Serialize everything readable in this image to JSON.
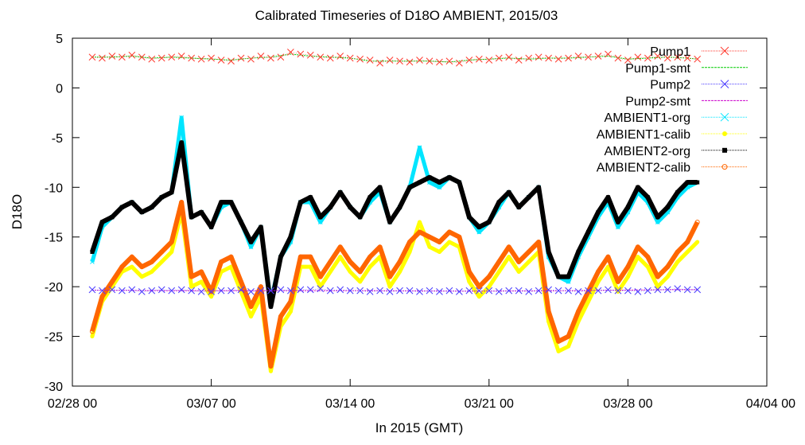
{
  "chart_data": {
    "type": "scatter",
    "title": "Calibrated Timeseries of D18O AMBIENT, 2015/03",
    "xlabel": "In 2015 (GMT)",
    "ylabel": "D18O",
    "xlim": [
      "2015-02-28 00:00",
      "2015-04-04 00:00"
    ],
    "ylim": [
      -30,
      5
    ],
    "xticks": [
      "02/28 00",
      "03/07 00",
      "03/14 00",
      "03/21 00",
      "03/28 00",
      "04/04 00"
    ],
    "yticks": [
      "5",
      "0",
      "-5",
      "-10",
      "-15",
      "-20",
      "-25",
      "-30"
    ],
    "legend_position": "top-right",
    "grid": false,
    "series": [
      {
        "name": "Pump1",
        "color": "#ff3b2f",
        "marker": "x",
        "x": [
          "03/01 00",
          "03/01 12",
          "03/02 00",
          "03/02 12",
          "03/03 00",
          "03/03 12",
          "03/04 00",
          "03/04 12",
          "03/05 00",
          "03/05 12",
          "03/06 00",
          "03/06 12",
          "03/07 00",
          "03/07 12",
          "03/08 00",
          "03/08 12",
          "03/09 00",
          "03/09 12",
          "03/10 00",
          "03/10 12",
          "03/11 00",
          "03/11 12",
          "03/12 00",
          "03/12 12",
          "03/13 00",
          "03/13 12",
          "03/14 00",
          "03/14 12",
          "03/15 00",
          "03/15 12",
          "03/16 00",
          "03/16 12",
          "03/17 00",
          "03/17 12",
          "03/18 00",
          "03/18 12",
          "03/19 00",
          "03/19 12",
          "03/20 00",
          "03/20 12",
          "03/21 00",
          "03/21 12",
          "03/22 00",
          "03/22 12",
          "03/23 00",
          "03/23 12",
          "03/24 00",
          "03/24 12",
          "03/25 00",
          "03/25 12",
          "03/26 00",
          "03/26 12",
          "03/27 00",
          "03/27 12",
          "03/28 00",
          "03/28 12",
          "03/29 00",
          "03/29 12",
          "03/30 00",
          "03/30 12",
          "03/31 00",
          "03/31 12"
        ],
        "y": [
          3.1,
          3.0,
          3.2,
          3.1,
          3.3,
          3.1,
          2.9,
          3.0,
          3.1,
          3.2,
          3.0,
          2.9,
          3.0,
          2.8,
          2.7,
          3.0,
          2.9,
          3.2,
          3.0,
          3.1,
          3.6,
          3.4,
          3.3,
          3.1,
          3.0,
          3.2,
          3.0,
          2.9,
          2.8,
          2.5,
          2.8,
          2.7,
          2.6,
          2.8,
          2.7,
          2.6,
          2.7,
          2.5,
          2.8,
          2.9,
          2.8,
          3.0,
          3.1,
          2.8,
          3.0,
          3.1,
          3.0,
          2.9,
          3.0,
          3.2,
          3.1,
          3.2,
          3.4,
          3.0,
          2.8,
          3.1,
          3.0,
          3.2,
          3.0,
          3.1,
          3.0,
          2.9
        ]
      },
      {
        "name": "Pump1-smt",
        "color": "#00cc00",
        "marker": "line",
        "x": [
          "03/01 00",
          "03/02 00",
          "03/03 00",
          "03/04 00",
          "03/05 00",
          "03/06 00",
          "03/07 00",
          "03/08 00",
          "03/09 00",
          "03/10 00",
          "03/11 00",
          "03/12 00",
          "03/13 00",
          "03/14 00",
          "03/15 00",
          "03/16 00",
          "03/17 00",
          "03/18 00",
          "03/19 00",
          "03/20 00",
          "03/21 00",
          "03/22 00",
          "03/23 00",
          "03/24 00",
          "03/25 00",
          "03/26 00",
          "03/27 00",
          "03/28 00",
          "03/29 00",
          "03/30 00",
          "03/31 00",
          "03/31 12"
        ],
        "y": [
          3.1,
          3.1,
          3.2,
          3.0,
          3.1,
          3.0,
          2.9,
          2.8,
          3.0,
          3.1,
          3.4,
          3.2,
          3.1,
          3.0,
          2.7,
          2.7,
          2.7,
          2.7,
          2.6,
          2.8,
          2.9,
          3.0,
          2.9,
          3.0,
          3.0,
          3.1,
          3.2,
          2.9,
          3.0,
          3.1,
          3.0,
          2.9
        ]
      },
      {
        "name": "Pump2",
        "color": "#4a3bff",
        "marker": "x",
        "x": [
          "03/01 00",
          "03/01 12",
          "03/02 00",
          "03/02 12",
          "03/03 00",
          "03/03 12",
          "03/04 00",
          "03/04 12",
          "03/05 00",
          "03/05 12",
          "03/06 00",
          "03/06 12",
          "03/07 00",
          "03/07 12",
          "03/08 00",
          "03/08 12",
          "03/09 00",
          "03/09 12",
          "03/10 00",
          "03/10 12",
          "03/11 00",
          "03/11 12",
          "03/12 00",
          "03/12 12",
          "03/13 00",
          "03/13 12",
          "03/14 00",
          "03/14 12",
          "03/15 00",
          "03/15 12",
          "03/16 00",
          "03/16 12",
          "03/17 00",
          "03/17 12",
          "03/18 00",
          "03/18 12",
          "03/19 00",
          "03/19 12",
          "03/20 00",
          "03/20 12",
          "03/21 00",
          "03/21 12",
          "03/22 00",
          "03/22 12",
          "03/23 00",
          "03/23 12",
          "03/24 00",
          "03/24 12",
          "03/25 00",
          "03/25 12",
          "03/26 00",
          "03/26 12",
          "03/27 00",
          "03/27 12",
          "03/28 00",
          "03/28 12",
          "03/29 00",
          "03/29 12",
          "03/30 00",
          "03/30 12",
          "03/31 00",
          "03/31 12"
        ],
        "y": [
          -20.3,
          -20.4,
          -20.3,
          -20.4,
          -20.3,
          -20.5,
          -20.4,
          -20.3,
          -20.4,
          -20.3,
          -20.4,
          -20.5,
          -20.5,
          -20.4,
          -20.4,
          -20.3,
          -20.5,
          -20.4,
          -20.4,
          -20.3,
          -20.4,
          -20.3,
          -20.3,
          -20.2,
          -20.4,
          -20.3,
          -20.4,
          -20.4,
          -20.5,
          -20.4,
          -20.5,
          -20.4,
          -20.4,
          -20.5,
          -20.4,
          -20.5,
          -20.4,
          -20.5,
          -20.4,
          -20.4,
          -20.4,
          -20.5,
          -20.4,
          -20.4,
          -20.5,
          -20.4,
          -20.3,
          -20.4,
          -20.4,
          -20.5,
          -20.4,
          -20.4,
          -20.3,
          -20.4,
          -20.4,
          -20.5,
          -20.4,
          -20.3,
          -20.3,
          -20.2,
          -20.3,
          -20.3
        ]
      },
      {
        "name": "Pump2-smt",
        "color": "#cc00cc",
        "marker": "line",
        "x": [
          "03/01 00",
          "03/05 00",
          "03/10 00",
          "03/15 00",
          "03/20 00",
          "03/25 00",
          "03/30 00",
          "03/31 12"
        ],
        "y": [
          -20.35,
          -20.4,
          -20.4,
          -20.4,
          -20.45,
          -20.4,
          -20.3,
          -20.3
        ]
      },
      {
        "name": "AMBIENT1-org",
        "color": "#00e5ff",
        "marker": "x",
        "x": [
          "03/01 00",
          "03/01 12",
          "03/02 00",
          "03/02 12",
          "03/03 00",
          "03/03 12",
          "03/04 00",
          "03/04 12",
          "03/05 00",
          "03/05 12",
          "03/06 00",
          "03/06 12",
          "03/07 00",
          "03/07 12",
          "03/08 00",
          "03/08 12",
          "03/09 00",
          "03/09 12",
          "03/10 00",
          "03/10 12",
          "03/11 00",
          "03/11 12",
          "03/12 00",
          "03/12 12",
          "03/13 00",
          "03/13 12",
          "03/14 00",
          "03/14 12",
          "03/15 00",
          "03/15 12",
          "03/16 00",
          "03/16 12",
          "03/17 00",
          "03/17 12",
          "03/18 00",
          "03/18 12",
          "03/19 00",
          "03/19 12",
          "03/20 00",
          "03/20 12",
          "03/21 00",
          "03/21 12",
          "03/22 00",
          "03/22 12",
          "03/23 00",
          "03/23 12",
          "03/24 00",
          "03/24 12",
          "03/25 00",
          "03/25 12",
          "03/26 00",
          "03/26 12",
          "03/27 00",
          "03/27 12",
          "03/28 00",
          "03/28 12",
          "03/29 00",
          "03/29 12",
          "03/30 00",
          "03/30 12",
          "03/31 00",
          "03/31 12"
        ],
        "y": [
          -17.5,
          -14.0,
          -13.0,
          -12.0,
          -11.5,
          -12.5,
          -12.0,
          -11.0,
          -10.5,
          -3.0,
          -13.0,
          -12.5,
          -14.0,
          -12.0,
          -11.5,
          -13.5,
          -16.0,
          -14.0,
          -21.5,
          -17.0,
          -15.5,
          -11.5,
          -11.5,
          -13.5,
          -12.0,
          -10.5,
          -12.0,
          -13.0,
          -11.5,
          -10.5,
          -13.5,
          -12.0,
          -10.0,
          -6.0,
          -9.5,
          -10.0,
          -9.0,
          -9.5,
          -13.0,
          -14.5,
          -13.5,
          -12.0,
          -10.5,
          -12.0,
          -11.0,
          -10.0,
          -17.0,
          -19.0,
          -19.5,
          -17.0,
          -15.0,
          -13.0,
          -11.5,
          -14.0,
          -12.5,
          -10.5,
          -11.5,
          -13.5,
          -12.5,
          -11.0,
          -10.0,
          -9.5
        ]
      },
      {
        "name": "AMBIENT1-calib",
        "color": "#ffff00",
        "marker": "dot",
        "x": [
          "03/01 00",
          "03/01 12",
          "03/02 00",
          "03/02 12",
          "03/03 00",
          "03/03 12",
          "03/04 00",
          "03/04 12",
          "03/05 00",
          "03/05 12",
          "03/06 00",
          "03/06 12",
          "03/07 00",
          "03/07 12",
          "03/08 00",
          "03/08 12",
          "03/09 00",
          "03/09 12",
          "03/10 00",
          "03/10 12",
          "03/11 00",
          "03/11 12",
          "03/12 00",
          "03/12 12",
          "03/13 00",
          "03/13 12",
          "03/14 00",
          "03/14 12",
          "03/15 00",
          "03/15 12",
          "03/16 00",
          "03/16 12",
          "03/17 00",
          "03/17 12",
          "03/18 00",
          "03/18 12",
          "03/19 00",
          "03/19 12",
          "03/20 00",
          "03/20 12",
          "03/21 00",
          "03/21 12",
          "03/22 00",
          "03/22 12",
          "03/23 00",
          "03/23 12",
          "03/24 00",
          "03/24 12",
          "03/25 00",
          "03/25 12",
          "03/26 00",
          "03/26 12",
          "03/27 00",
          "03/27 12",
          "03/28 00",
          "03/28 12",
          "03/29 00",
          "03/29 12",
          "03/30 00",
          "03/30 12",
          "03/31 00",
          "03/31 12"
        ],
        "y": [
          -25.0,
          -21.5,
          -20.0,
          -18.5,
          -18.0,
          -19.0,
          -18.5,
          -17.5,
          -16.5,
          -12.5,
          -20.0,
          -19.5,
          -21.0,
          -18.5,
          -18.0,
          -20.5,
          -23.0,
          -21.0,
          -28.5,
          -24.0,
          -22.5,
          -18.0,
          -18.0,
          -20.0,
          -18.5,
          -17.0,
          -18.5,
          -19.5,
          -18.0,
          -17.0,
          -20.0,
          -18.5,
          -16.5,
          -13.5,
          -16.0,
          -16.5,
          -15.5,
          -16.0,
          -19.5,
          -21.0,
          -20.0,
          -18.5,
          -17.0,
          -18.5,
          -17.5,
          -16.5,
          -23.5,
          -26.5,
          -26.0,
          -23.5,
          -21.5,
          -19.5,
          -18.0,
          -20.5,
          -19.0,
          -17.0,
          -18.0,
          -20.0,
          -19.0,
          -17.5,
          -16.5,
          -15.5
        ]
      },
      {
        "name": "AMBIENT2-org",
        "color": "#000000",
        "marker": "square",
        "x": [
          "03/01 00",
          "03/01 12",
          "03/02 00",
          "03/02 12",
          "03/03 00",
          "03/03 12",
          "03/04 00",
          "03/04 12",
          "03/05 00",
          "03/05 12",
          "03/06 00",
          "03/06 12",
          "03/07 00",
          "03/07 12",
          "03/08 00",
          "03/08 12",
          "03/09 00",
          "03/09 12",
          "03/10 00",
          "03/10 12",
          "03/11 00",
          "03/11 12",
          "03/12 00",
          "03/12 12",
          "03/13 00",
          "03/13 12",
          "03/14 00",
          "03/14 12",
          "03/15 00",
          "03/15 12",
          "03/16 00",
          "03/16 12",
          "03/17 00",
          "03/17 12",
          "03/18 00",
          "03/18 12",
          "03/19 00",
          "03/19 12",
          "03/20 00",
          "03/20 12",
          "03/21 00",
          "03/21 12",
          "03/22 00",
          "03/22 12",
          "03/23 00",
          "03/23 12",
          "03/24 00",
          "03/24 12",
          "03/25 00",
          "03/25 12",
          "03/26 00",
          "03/26 12",
          "03/27 00",
          "03/27 12",
          "03/28 00",
          "03/28 12",
          "03/29 00",
          "03/29 12",
          "03/30 00",
          "03/30 12",
          "03/31 00",
          "03/31 12"
        ],
        "y": [
          -16.5,
          -13.5,
          -13.0,
          -12.0,
          -11.5,
          -12.5,
          -12.0,
          -11.0,
          -10.5,
          -5.5,
          -13.0,
          -12.5,
          -14.0,
          -11.5,
          -11.5,
          -13.5,
          -15.5,
          -14.0,
          -22.0,
          -17.0,
          -15.0,
          -11.5,
          -11.0,
          -13.0,
          -12.0,
          -10.5,
          -12.0,
          -13.0,
          -11.0,
          -10.0,
          -13.5,
          -12.0,
          -10.0,
          -9.5,
          -9.0,
          -9.5,
          -9.0,
          -9.5,
          -13.0,
          -14.0,
          -13.5,
          -11.5,
          -10.5,
          -12.0,
          -11.0,
          -10.0,
          -16.5,
          -19.0,
          -19.0,
          -16.5,
          -14.5,
          -12.5,
          -11.0,
          -13.5,
          -12.0,
          -10.0,
          -11.0,
          -13.0,
          -12.0,
          -10.5,
          -9.5,
          -9.5
        ]
      },
      {
        "name": "AMBIENT2-calib",
        "color": "#ff6600",
        "marker": "circle",
        "x": [
          "03/01 00",
          "03/01 12",
          "03/02 00",
          "03/02 12",
          "03/03 00",
          "03/03 12",
          "03/04 00",
          "03/04 12",
          "03/05 00",
          "03/05 12",
          "03/06 00",
          "03/06 12",
          "03/07 00",
          "03/07 12",
          "03/08 00",
          "03/08 12",
          "03/09 00",
          "03/09 12",
          "03/10 00",
          "03/10 12",
          "03/11 00",
          "03/11 12",
          "03/12 00",
          "03/12 12",
          "03/13 00",
          "03/13 12",
          "03/14 00",
          "03/14 12",
          "03/15 00",
          "03/15 12",
          "03/16 00",
          "03/16 12",
          "03/17 00",
          "03/17 12",
          "03/18 00",
          "03/18 12",
          "03/19 00",
          "03/19 12",
          "03/20 00",
          "03/20 12",
          "03/21 00",
          "03/21 12",
          "03/22 00",
          "03/22 12",
          "03/23 00",
          "03/23 12",
          "03/24 00",
          "03/24 12",
          "03/25 00",
          "03/25 12",
          "03/26 00",
          "03/26 12",
          "03/27 00",
          "03/27 12",
          "03/28 00",
          "03/28 12",
          "03/29 00",
          "03/29 12",
          "03/30 00",
          "03/30 12",
          "03/31 00",
          "03/31 12"
        ],
        "y": [
          -24.5,
          -21.0,
          -19.5,
          -18.0,
          -17.0,
          -18.0,
          -17.5,
          -16.5,
          -15.5,
          -11.5,
          -19.0,
          -18.5,
          -20.5,
          -17.5,
          -17.0,
          -19.5,
          -22.0,
          -20.0,
          -28.0,
          -23.0,
          -21.5,
          -17.0,
          -17.0,
          -19.0,
          -17.5,
          -16.0,
          -17.5,
          -18.5,
          -17.0,
          -16.0,
          -19.0,
          -17.5,
          -15.5,
          -14.5,
          -15.0,
          -15.5,
          -14.5,
          -15.0,
          -18.5,
          -20.0,
          -19.0,
          -17.5,
          -16.0,
          -17.5,
          -16.5,
          -15.5,
          -22.5,
          -25.5,
          -25.0,
          -22.5,
          -20.5,
          -18.5,
          -17.0,
          -19.5,
          -18.0,
          -16.0,
          -17.0,
          -19.0,
          -18.0,
          -16.5,
          -15.5,
          -13.5
        ]
      }
    ]
  }
}
